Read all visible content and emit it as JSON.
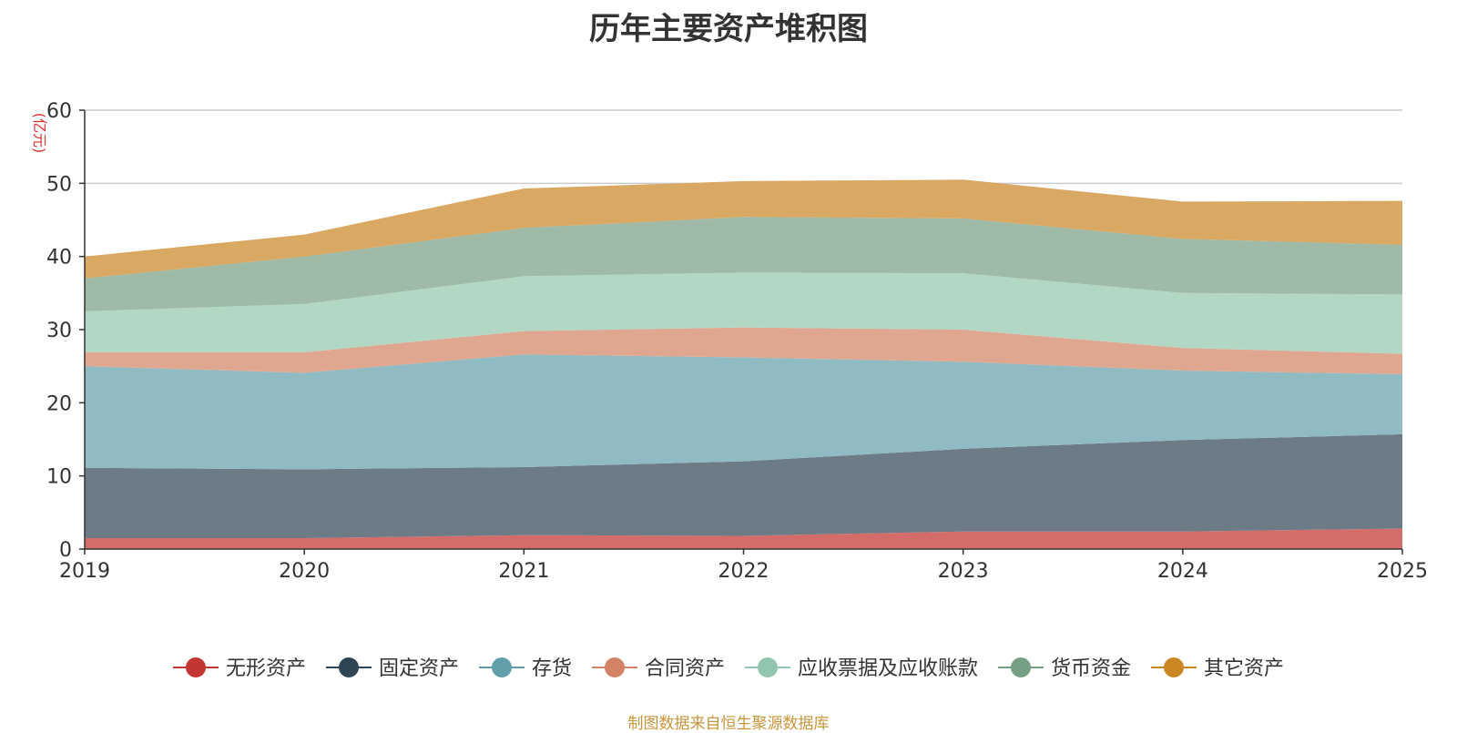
{
  "chart_data": {
    "type": "area",
    "stacked": true,
    "title": "历年主要资产堆积图",
    "ylabel": "(亿元)",
    "xlabel": "",
    "ylim": [
      0,
      60
    ],
    "yticks": [
      0,
      10,
      20,
      30,
      40,
      50,
      60
    ],
    "ytick_labels": [
      "0",
      "10",
      "20",
      "30",
      "40",
      "50",
      "60"
    ],
    "categories": [
      "2019",
      "2020",
      "2021",
      "2022",
      "2023",
      "2024",
      "2025"
    ],
    "grid": true,
    "legend_position": "bottom-center",
    "series": [
      {
        "name": "无形资产",
        "color": "#c23531",
        "area_color": "#d46c6a",
        "values": [
          1.5,
          1.5,
          1.9,
          1.8,
          2.4,
          2.4,
          2.8
        ]
      },
      {
        "name": "固定资产",
        "color": "#2f4554",
        "area_color": "#6d7b87",
        "values": [
          9.6,
          9.4,
          9.3,
          10.2,
          11.3,
          12.5,
          12.9
        ]
      },
      {
        "name": "存货",
        "color": "#61a0a8",
        "area_color": "#90bbc2",
        "values": [
          13.9,
          13.2,
          15.4,
          14.2,
          11.9,
          9.5,
          8.2
        ]
      },
      {
        "name": "合同资产",
        "color": "#d48265",
        "area_color": "#e0a790",
        "values": [
          1.9,
          2.8,
          3.2,
          4.1,
          4.4,
          3.1,
          2.8
        ]
      },
      {
        "name": "应收票据及应收账款",
        "color": "#91c7ae",
        "area_color": "#b2d8c5",
        "values": [
          5.6,
          6.6,
          7.5,
          7.5,
          7.7,
          7.5,
          8.1
        ]
      },
      {
        "name": "货币资金",
        "color": "#749f83",
        "area_color": "#9fbaa6",
        "values": [
          4.5,
          6.5,
          6.6,
          7.6,
          7.5,
          7.4,
          6.8
        ]
      },
      {
        "name": "其它资产",
        "color": "#ca8622",
        "area_color": "#d9a862",
        "values": [
          3.0,
          3.0,
          5.4,
          4.9,
          5.3,
          5.1,
          6.0
        ]
      }
    ]
  },
  "source_note": "制图数据来自恒生聚源数据库"
}
